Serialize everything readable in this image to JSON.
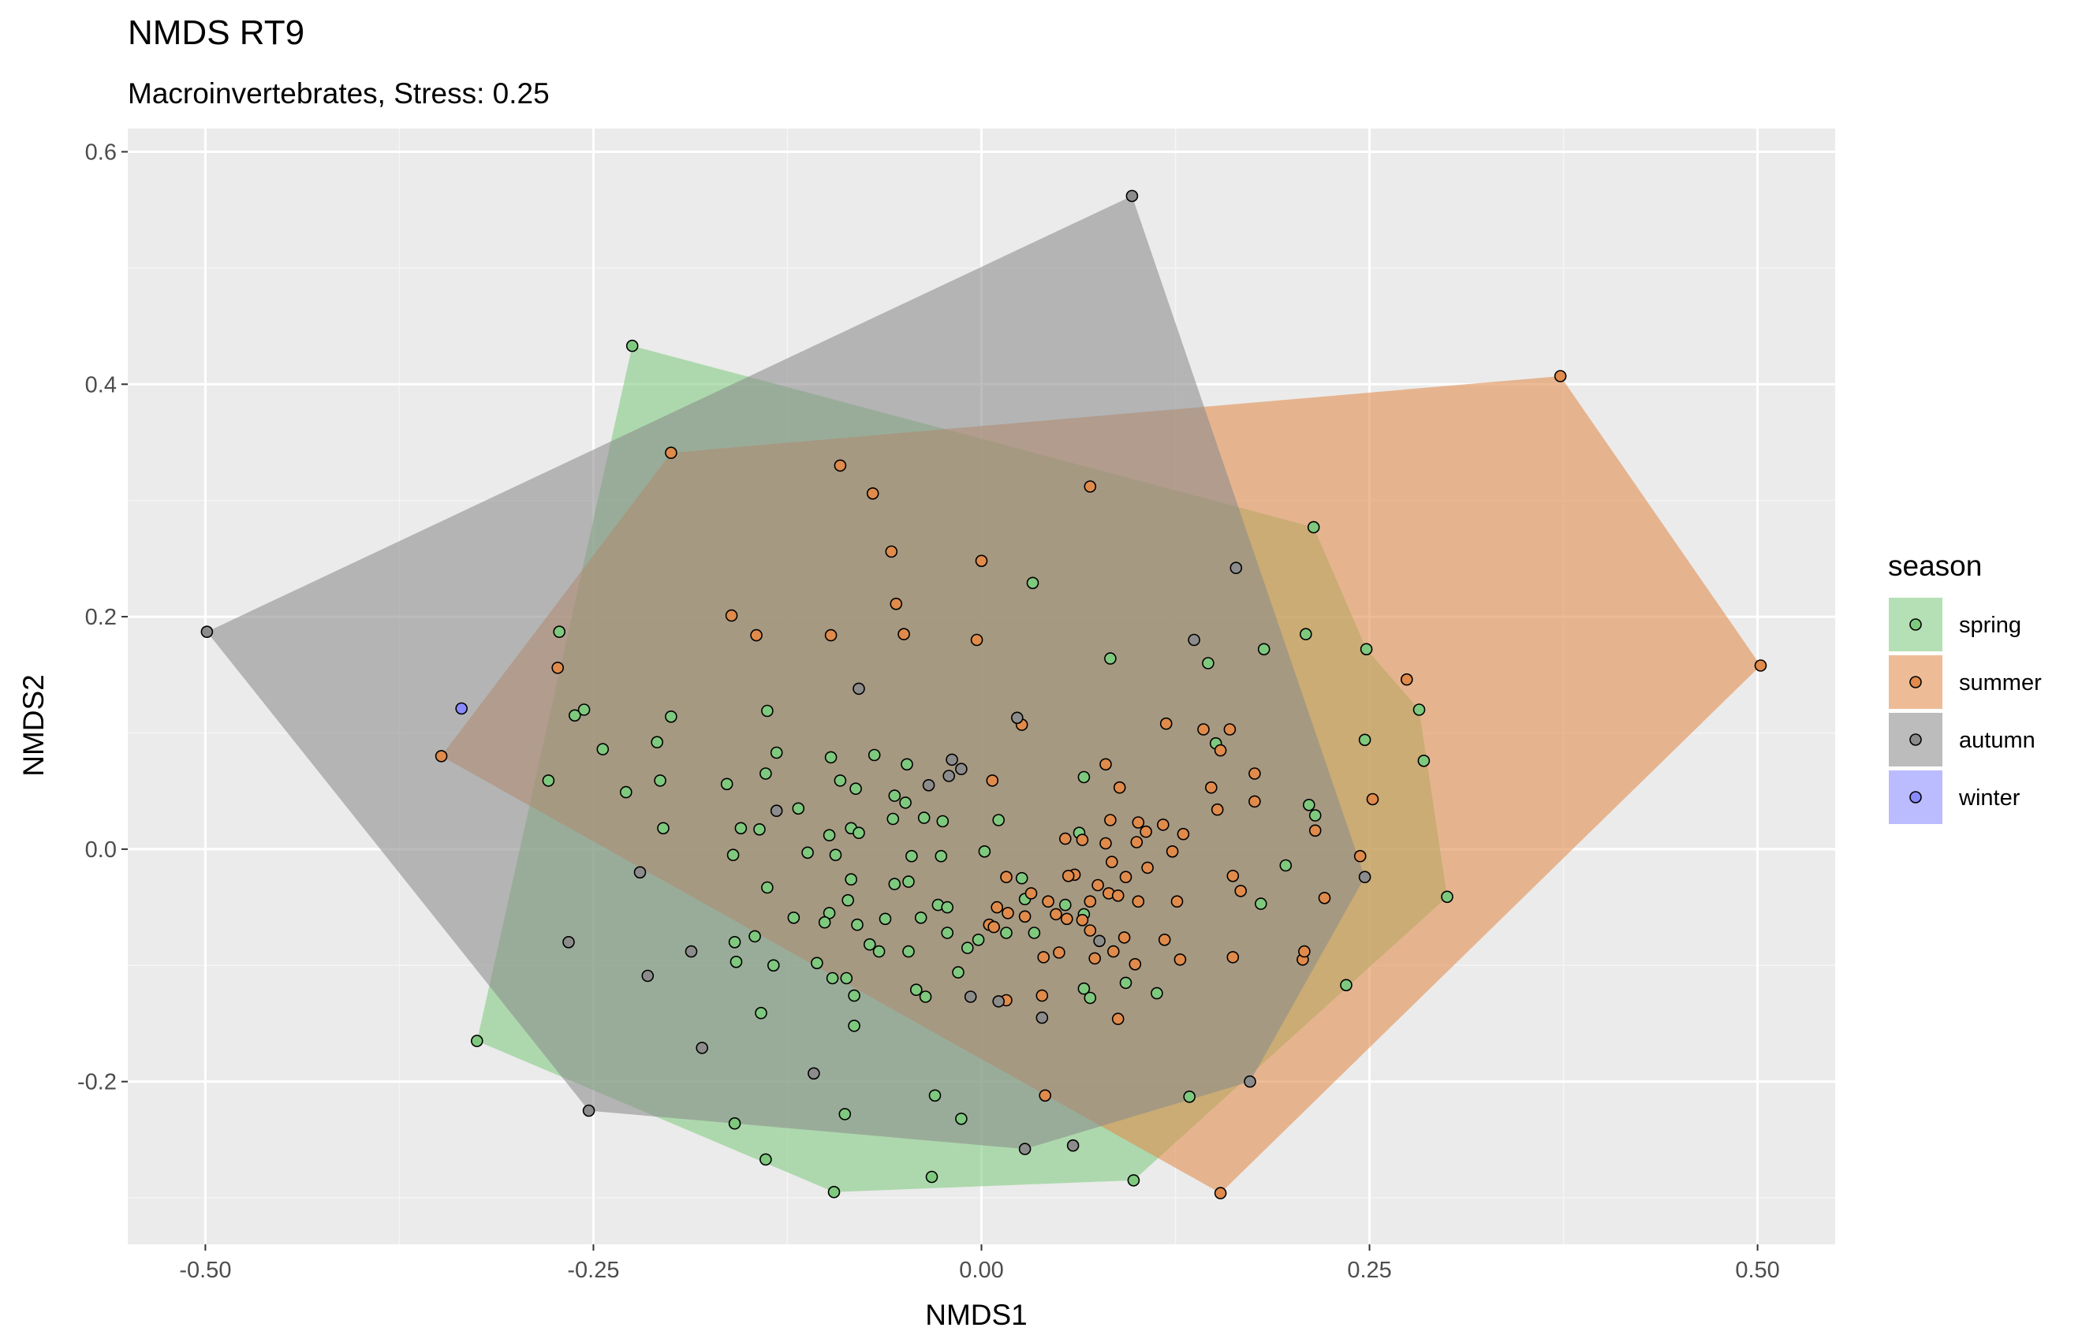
{
  "chart_data": {
    "type": "scatter",
    "title": "NMDS RT9",
    "subtitle": "Macroinvertebrates, Stress: 0.25",
    "xlabel": "NMDS1",
    "ylabel": "NMDS2",
    "xlim": [
      -0.55,
      0.55
    ],
    "ylim": [
      -0.34,
      0.62
    ],
    "x_ticks": [
      -0.5,
      -0.25,
      0.0,
      0.25,
      0.5
    ],
    "x_tick_labels": [
      "-0.50",
      "-0.25",
      "0.00",
      "0.25",
      "0.50"
    ],
    "y_ticks": [
      -0.2,
      0.0,
      0.2,
      0.4,
      0.6
    ],
    "y_tick_labels": [
      "-0.2",
      "0.0",
      "0.2",
      "0.4",
      "0.6"
    ],
    "grid": true,
    "legend": {
      "title": "season",
      "position": "right"
    },
    "series": [
      {
        "name": "spring",
        "color": "#7fc97f",
        "hull": [
          [
            -0.225,
            0.433
          ],
          [
            0.214,
            0.277
          ],
          [
            0.248,
            0.172
          ],
          [
            0.282,
            0.12
          ],
          [
            0.3,
            -0.041
          ],
          [
            0.098,
            -0.285
          ],
          [
            -0.095,
            -0.295
          ],
          [
            -0.325,
            -0.165
          ]
        ],
        "points": [
          [
            -0.225,
            0.433
          ],
          [
            0.214,
            0.277
          ],
          [
            0.033,
            0.229
          ],
          [
            -0.272,
            0.187
          ],
          [
            0.209,
            0.185
          ],
          [
            0.083,
            0.164
          ],
          [
            0.248,
            0.172
          ],
          [
            0.182,
            0.172
          ],
          [
            0.146,
            0.16
          ],
          [
            -0.256,
            0.12
          ],
          [
            -0.2,
            0.114
          ],
          [
            -0.138,
            0.119
          ],
          [
            -0.262,
            0.115
          ],
          [
            0.282,
            0.12
          ],
          [
            0.247,
            0.094
          ],
          [
            0.151,
            0.091
          ],
          [
            -0.209,
            0.092
          ],
          [
            -0.244,
            0.086
          ],
          [
            -0.132,
            0.083
          ],
          [
            0.285,
            0.076
          ],
          [
            -0.097,
            0.079
          ],
          [
            -0.069,
            0.081
          ],
          [
            -0.048,
            0.073
          ],
          [
            -0.279,
            0.059
          ],
          [
            -0.207,
            0.059
          ],
          [
            -0.229,
            0.049
          ],
          [
            -0.164,
            0.056
          ],
          [
            0.066,
            0.062
          ],
          [
            -0.091,
            0.059
          ],
          [
            -0.081,
            0.052
          ],
          [
            -0.056,
            0.046
          ],
          [
            0.211,
            0.038
          ],
          [
            0.215,
            0.029
          ],
          [
            -0.139,
            0.065
          ],
          [
            -0.118,
            0.035
          ],
          [
            -0.057,
            0.026
          ],
          [
            -0.037,
            0.027
          ],
          [
            -0.025,
            0.024
          ],
          [
            -0.205,
            0.018
          ],
          [
            -0.155,
            0.018
          ],
          [
            -0.143,
            0.017
          ],
          [
            -0.084,
            0.018
          ],
          [
            -0.049,
            0.04
          ],
          [
            -0.098,
            0.012
          ],
          [
            -0.079,
            0.014
          ],
          [
            0.011,
            0.025
          ],
          [
            0.063,
            0.014
          ],
          [
            -0.094,
            -0.005
          ],
          [
            -0.045,
            -0.006
          ],
          [
            -0.026,
            -0.006
          ],
          [
            -0.16,
            -0.005
          ],
          [
            -0.112,
            -0.003
          ],
          [
            0.002,
            -0.002
          ],
          [
            -0.056,
            -0.03
          ],
          [
            -0.084,
            -0.026
          ],
          [
            -0.047,
            -0.028
          ],
          [
            -0.138,
            -0.033
          ],
          [
            -0.086,
            -0.044
          ],
          [
            -0.098,
            -0.055
          ],
          [
            -0.062,
            -0.06
          ],
          [
            -0.08,
            -0.065
          ],
          [
            -0.039,
            -0.059
          ],
          [
            -0.028,
            -0.048
          ],
          [
            -0.022,
            -0.05
          ],
          [
            0.026,
            -0.025
          ],
          [
            0.054,
            -0.048
          ],
          [
            0.028,
            -0.043
          ],
          [
            0.066,
            -0.056
          ],
          [
            0.18,
            -0.047
          ],
          [
            0.196,
            -0.014
          ],
          [
            0.3,
            -0.041
          ],
          [
            0.235,
            -0.117
          ],
          [
            -0.121,
            -0.059
          ],
          [
            -0.101,
            -0.063
          ],
          [
            -0.146,
            -0.075
          ],
          [
            -0.159,
            -0.08
          ],
          [
            -0.022,
            -0.072
          ],
          [
            -0.047,
            -0.088
          ],
          [
            -0.066,
            -0.088
          ],
          [
            -0.072,
            -0.082
          ],
          [
            -0.009,
            -0.085
          ],
          [
            -0.002,
            -0.078
          ],
          [
            0.016,
            -0.072
          ],
          [
            0.034,
            -0.072
          ],
          [
            -0.158,
            -0.097
          ],
          [
            -0.134,
            -0.1
          ],
          [
            -0.106,
            -0.098
          ],
          [
            -0.096,
            -0.111
          ],
          [
            -0.087,
            -0.111
          ],
          [
            -0.082,
            -0.126
          ],
          [
            -0.042,
            -0.121
          ],
          [
            -0.036,
            -0.127
          ],
          [
            -0.015,
            -0.106
          ],
          [
            -0.142,
            -0.141
          ],
          [
            -0.082,
            -0.152
          ],
          [
            0.066,
            -0.12
          ],
          [
            0.07,
            -0.128
          ],
          [
            0.093,
            -0.115
          ],
          [
            0.113,
            -0.124
          ],
          [
            0.134,
            -0.213
          ],
          [
            -0.159,
            -0.236
          ],
          [
            -0.088,
            -0.228
          ],
          [
            -0.03,
            -0.212
          ],
          [
            -0.013,
            -0.232
          ],
          [
            -0.139,
            -0.267
          ],
          [
            -0.095,
            -0.295
          ],
          [
            -0.032,
            -0.282
          ],
          [
            0.098,
            -0.285
          ],
          [
            -0.325,
            -0.165
          ]
        ]
      },
      {
        "name": "summer",
        "color": "#e08b4b",
        "hull": [
          [
            0.373,
            0.407
          ],
          [
            0.502,
            0.158
          ],
          [
            0.154,
            -0.296
          ],
          [
            -0.348,
            0.08
          ],
          [
            -0.2,
            0.341
          ]
        ],
        "points": [
          [
            0.373,
            0.407
          ],
          [
            0.502,
            0.158
          ],
          [
            -0.2,
            0.341
          ],
          [
            -0.091,
            0.33
          ],
          [
            0.07,
            0.312
          ],
          [
            -0.07,
            0.306
          ],
          [
            -0.058,
            0.256
          ],
          [
            0.0,
            0.248
          ],
          [
            -0.055,
            0.211
          ],
          [
            -0.161,
            0.201
          ],
          [
            -0.145,
            0.184
          ],
          [
            -0.097,
            0.184
          ],
          [
            -0.05,
            0.185
          ],
          [
            -0.003,
            0.18
          ],
          [
            -0.273,
            0.156
          ],
          [
            0.274,
            0.146
          ],
          [
            -0.348,
            0.08
          ],
          [
            0.026,
            0.107
          ],
          [
            0.119,
            0.108
          ],
          [
            0.143,
            0.103
          ],
          [
            0.16,
            0.103
          ],
          [
            0.154,
            0.085
          ],
          [
            0.08,
            0.073
          ],
          [
            0.007,
            0.059
          ],
          [
            0.089,
            0.053
          ],
          [
            0.176,
            0.065
          ],
          [
            0.148,
            0.053
          ],
          [
            0.176,
            0.041
          ],
          [
            0.252,
            0.043
          ],
          [
            0.152,
            0.034
          ],
          [
            0.083,
            0.025
          ],
          [
            0.101,
            0.023
          ],
          [
            0.13,
            0.013
          ],
          [
            0.117,
            0.021
          ],
          [
            0.054,
            0.009
          ],
          [
            0.065,
            0.008
          ],
          [
            0.106,
            0.015
          ],
          [
            0.08,
            0.005
          ],
          [
            0.1,
            0.006
          ],
          [
            0.123,
            -0.002
          ],
          [
            0.215,
            0.016
          ],
          [
            0.244,
            -0.006
          ],
          [
            0.084,
            -0.011
          ],
          [
            0.06,
            -0.022
          ],
          [
            0.093,
            -0.024
          ],
          [
            0.107,
            -0.016
          ],
          [
            0.162,
            -0.023
          ],
          [
            0.221,
            -0.042
          ],
          [
            0.016,
            -0.024
          ],
          [
            0.032,
            -0.038
          ],
          [
            0.056,
            -0.023
          ],
          [
            0.075,
            -0.031
          ],
          [
            0.082,
            -0.038
          ],
          [
            0.043,
            -0.045
          ],
          [
            0.088,
            -0.04
          ],
          [
            0.07,
            -0.045
          ],
          [
            0.101,
            -0.045
          ],
          [
            0.126,
            -0.045
          ],
          [
            0.167,
            -0.036
          ],
          [
            0.055,
            -0.06
          ],
          [
            0.01,
            -0.05
          ],
          [
            0.005,
            -0.065
          ],
          [
            0.008,
            -0.067
          ],
          [
            0.017,
            -0.055
          ],
          [
            0.065,
            -0.061
          ],
          [
            0.048,
            -0.056
          ],
          [
            0.028,
            -0.058
          ],
          [
            0.07,
            -0.07
          ],
          [
            0.118,
            -0.078
          ],
          [
            0.092,
            -0.076
          ],
          [
            0.05,
            -0.089
          ],
          [
            0.085,
            -0.088
          ],
          [
            0.04,
            -0.093
          ],
          [
            0.073,
            -0.094
          ],
          [
            0.128,
            -0.095
          ],
          [
            0.162,
            -0.093
          ],
          [
            0.207,
            -0.095
          ],
          [
            0.208,
            -0.088
          ],
          [
            0.099,
            -0.099
          ],
          [
            0.039,
            -0.126
          ],
          [
            0.016,
            -0.13
          ],
          [
            0.088,
            -0.146
          ],
          [
            0.041,
            -0.212
          ],
          [
            0.154,
            -0.296
          ]
        ]
      },
      {
        "name": "autumn",
        "color": "#8c8c8c",
        "hull": [
          [
            -0.499,
            0.187
          ],
          [
            0.097,
            0.562
          ],
          [
            0.247,
            -0.024
          ],
          [
            0.173,
            -0.2
          ],
          [
            0.028,
            -0.258
          ],
          [
            -0.253,
            -0.225
          ]
        ],
        "points": [
          [
            -0.499,
            0.187
          ],
          [
            0.097,
            0.562
          ],
          [
            0.164,
            0.242
          ],
          [
            0.137,
            0.18
          ],
          [
            -0.079,
            0.138
          ],
          [
            0.023,
            0.113
          ],
          [
            -0.019,
            0.077
          ],
          [
            -0.034,
            0.055
          ],
          [
            -0.013,
            0.069
          ],
          [
            -0.021,
            0.063
          ],
          [
            -0.132,
            0.033
          ],
          [
            0.247,
            -0.024
          ],
          [
            -0.22,
            -0.02
          ],
          [
            -0.266,
            -0.08
          ],
          [
            -0.215,
            -0.109
          ],
          [
            -0.187,
            -0.088
          ],
          [
            -0.18,
            -0.171
          ],
          [
            -0.007,
            -0.127
          ],
          [
            0.011,
            -0.131
          ],
          [
            0.039,
            -0.145
          ],
          [
            0.076,
            -0.079
          ],
          [
            -0.108,
            -0.193
          ],
          [
            0.173,
            -0.2
          ],
          [
            0.028,
            -0.258
          ],
          [
            0.059,
            -0.255
          ],
          [
            -0.253,
            -0.225
          ]
        ]
      },
      {
        "name": "winter",
        "color": "#8a8aff",
        "hull": [],
        "points": [
          [
            -0.335,
            0.121
          ]
        ]
      }
    ]
  },
  "colors": {
    "panel_background": "#ebebeb",
    "grid_major": "#ffffff",
    "grid_minor": "#f5f5f5",
    "point_outline": "#000000",
    "spring": "#7fc97f",
    "summer": "#e08b4b",
    "autumn": "#8c8c8c",
    "winter": "#8a8aff"
  }
}
